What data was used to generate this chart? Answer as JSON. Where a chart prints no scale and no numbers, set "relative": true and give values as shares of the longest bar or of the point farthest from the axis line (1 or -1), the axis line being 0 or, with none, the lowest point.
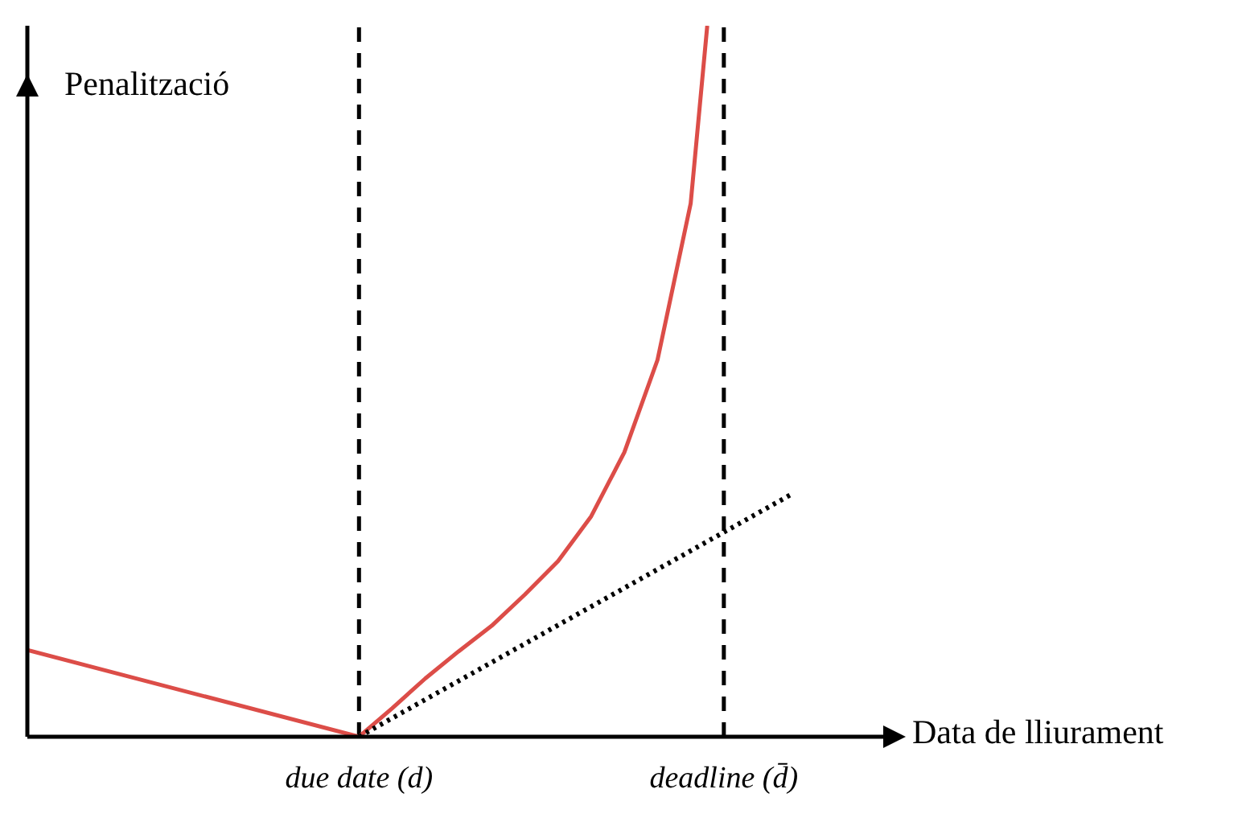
{
  "chart_data": {
    "type": "line",
    "relative": true,
    "xlabel": "Data de lliurament",
    "ylabel": "Penalització",
    "categories": [
      null,
      null,
      null,
      null,
      null,
      null,
      null,
      null,
      null,
      null,
      null,
      null,
      null,
      null,
      null,
      null,
      null,
      null,
      null,
      null,
      "due date (d)",
      null,
      null,
      null,
      null,
      null,
      null,
      null,
      null,
      null,
      null,
      null,
      null,
      null,
      null,
      null,
      null,
      null,
      null,
      null,
      null,
      null,
      "deadline (d̄)",
      null,
      null,
      null,
      null,
      null,
      null,
      null,
      null,
      null
    ],
    "series": [
      {
        "color": "#dc4d48",
        "line_style": "solid",
        "values": [
          0.122,
          null,
          null,
          null,
          null,
          null,
          null,
          null,
          null,
          null,
          null,
          null,
          null,
          null,
          null,
          null,
          null,
          null,
          null,
          null,
          0,
          null,
          0.04,
          null,
          0.082,
          null,
          0.12,
          null,
          0.156,
          null,
          0.2,
          null,
          0.247,
          null,
          0.31,
          null,
          0.4,
          null,
          0.53,
          null,
          0.75,
          1,
          null,
          null,
          null,
          null,
          null,
          null,
          null,
          null,
          null,
          null
        ]
      },
      {
        "color": "#000000",
        "line_style": "dotted",
        "values": [
          null,
          null,
          null,
          null,
          null,
          null,
          null,
          null,
          null,
          null,
          null,
          null,
          null,
          null,
          null,
          null,
          null,
          null,
          null,
          null,
          0,
          null,
          null,
          null,
          null,
          null,
          null,
          null,
          null,
          null,
          null,
          null,
          null,
          null,
          null,
          null,
          null,
          null,
          null,
          null,
          null,
          null,
          null,
          null,
          null,
          null,
          0.34,
          null,
          null,
          null,
          null,
          null
        ]
      }
    ],
    "ref_lines": [
      {
        "axis": "x",
        "value": "due date (d)",
        "color": "#000000",
        "line_style": "dashed"
      },
      {
        "axis": "x",
        "value": "deadline (d̄)",
        "color": "#000000",
        "line_style": "dashed"
      }
    ],
    "grid": false,
    "legend": false,
    "marker": "none"
  }
}
